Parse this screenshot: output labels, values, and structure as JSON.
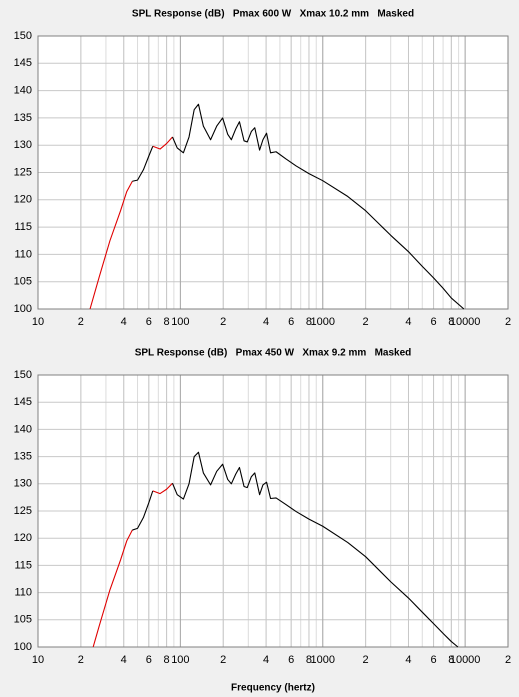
{
  "chart_data": [
    {
      "type": "line",
      "title": "SPL Response (dB)   Pmax 600 W   Xmax 10.2 mm   Masked",
      "log_x": true,
      "grid": true,
      "minor_grid": true,
      "xlim": [
        10,
        20000
      ],
      "ylim": [
        100,
        150
      ],
      "xticks": [
        10,
        {
          "value": 20,
          "label": "2"
        },
        {
          "value": 40,
          "label": "4"
        },
        {
          "value": 60,
          "label": "6"
        },
        {
          "value": 80,
          "label": "8"
        },
        100,
        {
          "value": 200,
          "label": "2"
        },
        {
          "value": 400,
          "label": "4"
        },
        {
          "value": 600,
          "label": "6"
        },
        {
          "value": 800,
          "label": "8"
        },
        1000,
        {
          "value": 2000,
          "label": "2"
        },
        {
          "value": 4000,
          "label": "4"
        },
        {
          "value": 6000,
          "label": "6"
        },
        {
          "value": 8000,
          "label": "8"
        },
        10000,
        {
          "value": 20000,
          "label": "2"
        }
      ],
      "yticks": [
        100,
        105,
        110,
        115,
        120,
        125,
        130,
        135,
        140,
        145,
        150
      ],
      "x": [
        23.2,
        27,
        32,
        38,
        42,
        46,
        50,
        55,
        60,
        64,
        72,
        80,
        88,
        95,
        105,
        115,
        125,
        134,
        145,
        163,
        180,
        198,
        215,
        228,
        245,
        260,
        280,
        295,
        315,
        333,
        360,
        380,
        403,
        430,
        470,
        550,
        650,
        800,
        1000,
        1500,
        2000,
        3000,
        4000,
        5000,
        6000,
        7000,
        8000,
        9800
      ],
      "series": [
        {
          "color": "#e00000",
          "values": [
            100,
            106,
            112.5,
            118,
            121.5,
            123.4,
            null,
            null,
            null,
            129.8,
            129.3,
            130.3,
            131.5,
            null,
            null,
            null,
            null,
            null,
            null,
            null,
            null,
            null,
            null,
            null,
            null,
            null,
            null,
            null,
            null,
            null,
            null,
            null,
            null,
            null,
            null,
            null,
            null,
            null,
            null,
            null,
            null,
            null,
            null,
            null,
            null,
            null,
            null,
            null
          ]
        },
        {
          "color": "#000000",
          "values": [
            null,
            null,
            null,
            null,
            null,
            123.4,
            123.6,
            125.5,
            128,
            129.8,
            null,
            null,
            131.5,
            129.5,
            128.6,
            131.5,
            136.5,
            137.5,
            133.5,
            131,
            133.5,
            135,
            132,
            131,
            133,
            134.3,
            130.8,
            130.6,
            132.5,
            133.2,
            129.1,
            131,
            132.2,
            128.6,
            128.8,
            127.5,
            126.2,
            124.8,
            123.5,
            120.6,
            118,
            113.5,
            110.5,
            107.8,
            105.7,
            103.8,
            102,
            100
          ]
        }
      ]
    },
    {
      "type": "line",
      "title": "SPL Response (dB)   Pmax 450 W   Xmax 9.2 mm   Masked",
      "x_label": "Frequency (hertz)",
      "log_x": true,
      "grid": true,
      "minor_grid": true,
      "xlim": [
        10,
        20000
      ],
      "ylim": [
        100,
        150
      ],
      "xticks": [
        10,
        {
          "value": 20,
          "label": "2"
        },
        {
          "value": 40,
          "label": "4"
        },
        {
          "value": 60,
          "label": "6"
        },
        {
          "value": 80,
          "label": "8"
        },
        100,
        {
          "value": 200,
          "label": "2"
        },
        {
          "value": 400,
          "label": "4"
        },
        {
          "value": 600,
          "label": "6"
        },
        {
          "value": 800,
          "label": "8"
        },
        1000,
        {
          "value": 2000,
          "label": "2"
        },
        {
          "value": 4000,
          "label": "4"
        },
        {
          "value": 6000,
          "label": "6"
        },
        {
          "value": 8000,
          "label": "8"
        },
        10000,
        {
          "value": 20000,
          "label": "2"
        }
      ],
      "yticks": [
        100,
        105,
        110,
        115,
        120,
        125,
        130,
        135,
        140,
        145,
        150
      ],
      "x": [
        24.4,
        27,
        32,
        38,
        42,
        46,
        50,
        55,
        60,
        64,
        72,
        80,
        88,
        95,
        105,
        115,
        125,
        134,
        145,
        163,
        180,
        198,
        215,
        228,
        245,
        260,
        280,
        295,
        315,
        333,
        360,
        380,
        403,
        430,
        470,
        550,
        650,
        800,
        1000,
        1500,
        2000,
        3000,
        4000,
        5000,
        6000,
        7000,
        8000,
        8900
      ],
      "series": [
        {
          "color": "#e00000",
          "values": [
            100,
            104,
            110.5,
            116,
            119.5,
            121.5,
            null,
            null,
            null,
            128.7,
            128.2,
            129,
            130.1,
            null,
            null,
            null,
            null,
            null,
            null,
            null,
            null,
            null,
            null,
            null,
            null,
            null,
            null,
            null,
            null,
            null,
            null,
            null,
            null,
            null,
            null,
            null,
            null,
            null,
            null,
            null,
            null,
            null,
            null,
            null,
            null,
            null,
            null,
            null
          ]
        },
        {
          "color": "#000000",
          "values": [
            null,
            null,
            null,
            null,
            null,
            121.5,
            121.8,
            123.8,
            126.5,
            128.7,
            null,
            null,
            130.1,
            128,
            127.2,
            130,
            135,
            135.8,
            132,
            129.8,
            132.3,
            133.6,
            130.8,
            130,
            131.8,
            133,
            129.5,
            129.3,
            131.3,
            132,
            128,
            129.8,
            130.3,
            127.3,
            127.4,
            126.2,
            124.9,
            123.5,
            122.2,
            119.2,
            116.6,
            112,
            109,
            106.4,
            104.3,
            102.5,
            101,
            100
          ]
        }
      ]
    }
  ]
}
